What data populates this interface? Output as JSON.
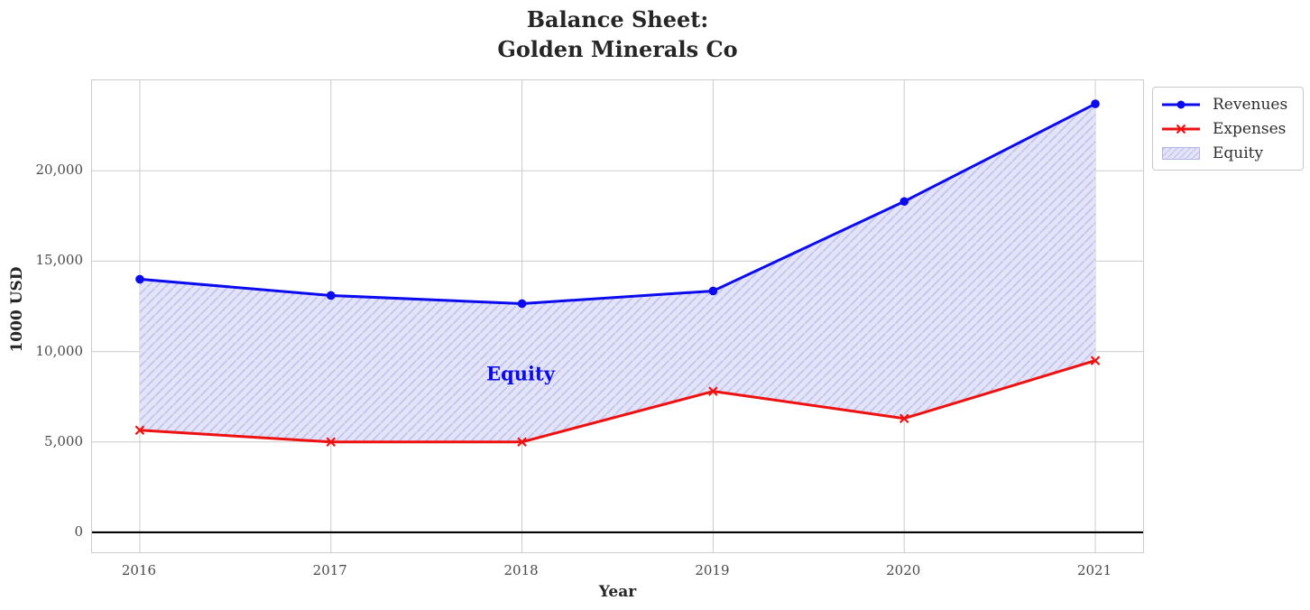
{
  "chart": {
    "title_line1": "Balance Sheet:",
    "title_line2": "Golden Minerals Co",
    "xlabel": "Year",
    "ylabel": "1000 USD",
    "annotation": "Equity",
    "annotation_color": "#0b0bee"
  },
  "legend": {
    "items": [
      {
        "label": "Revenues"
      },
      {
        "label": "Expenses"
      },
      {
        "label": "Equity"
      }
    ]
  },
  "chart_data": {
    "type": "line",
    "title": "Balance Sheet:\nGolden Minerals Co",
    "xlabel": "Year",
    "ylabel": "1000 USD",
    "x": [
      2016,
      2017,
      2018,
      2019,
      2020,
      2021
    ],
    "xtick_labels": [
      "2016",
      "2017",
      "2018",
      "2019",
      "2020",
      "2021"
    ],
    "series": [
      {
        "name": "Revenues",
        "values": [
          14000,
          13100,
          12650,
          13350,
          18300,
          23700
        ],
        "color": "#0b0bee",
        "marker": "circle",
        "line_width": 3
      },
      {
        "name": "Expenses",
        "values": [
          5650,
          5000,
          5000,
          7800,
          6300,
          9500
        ],
        "color": "#ee1111",
        "marker": "x",
        "line_width": 3
      }
    ],
    "fill_between": {
      "label": "Equity",
      "between": [
        "Revenues",
        "Expenses"
      ],
      "fill": "#e4e4f8",
      "hatch": "#c6c6f0",
      "edge": "#b3b3e6"
    },
    "yticks": [
      0,
      5000,
      10000,
      15000,
      20000
    ],
    "ytick_labels": [
      "0",
      "5,000",
      "10,000",
      "15,000",
      "20,000"
    ],
    "ylim": [
      -1100,
      25000
    ],
    "xlim": [
      2015.75,
      2021.25
    ],
    "grid": true,
    "grid_color": "#cccccc",
    "zero_line": true,
    "zero_line_color": "#000000",
    "legend_position": "outside upper right"
  }
}
